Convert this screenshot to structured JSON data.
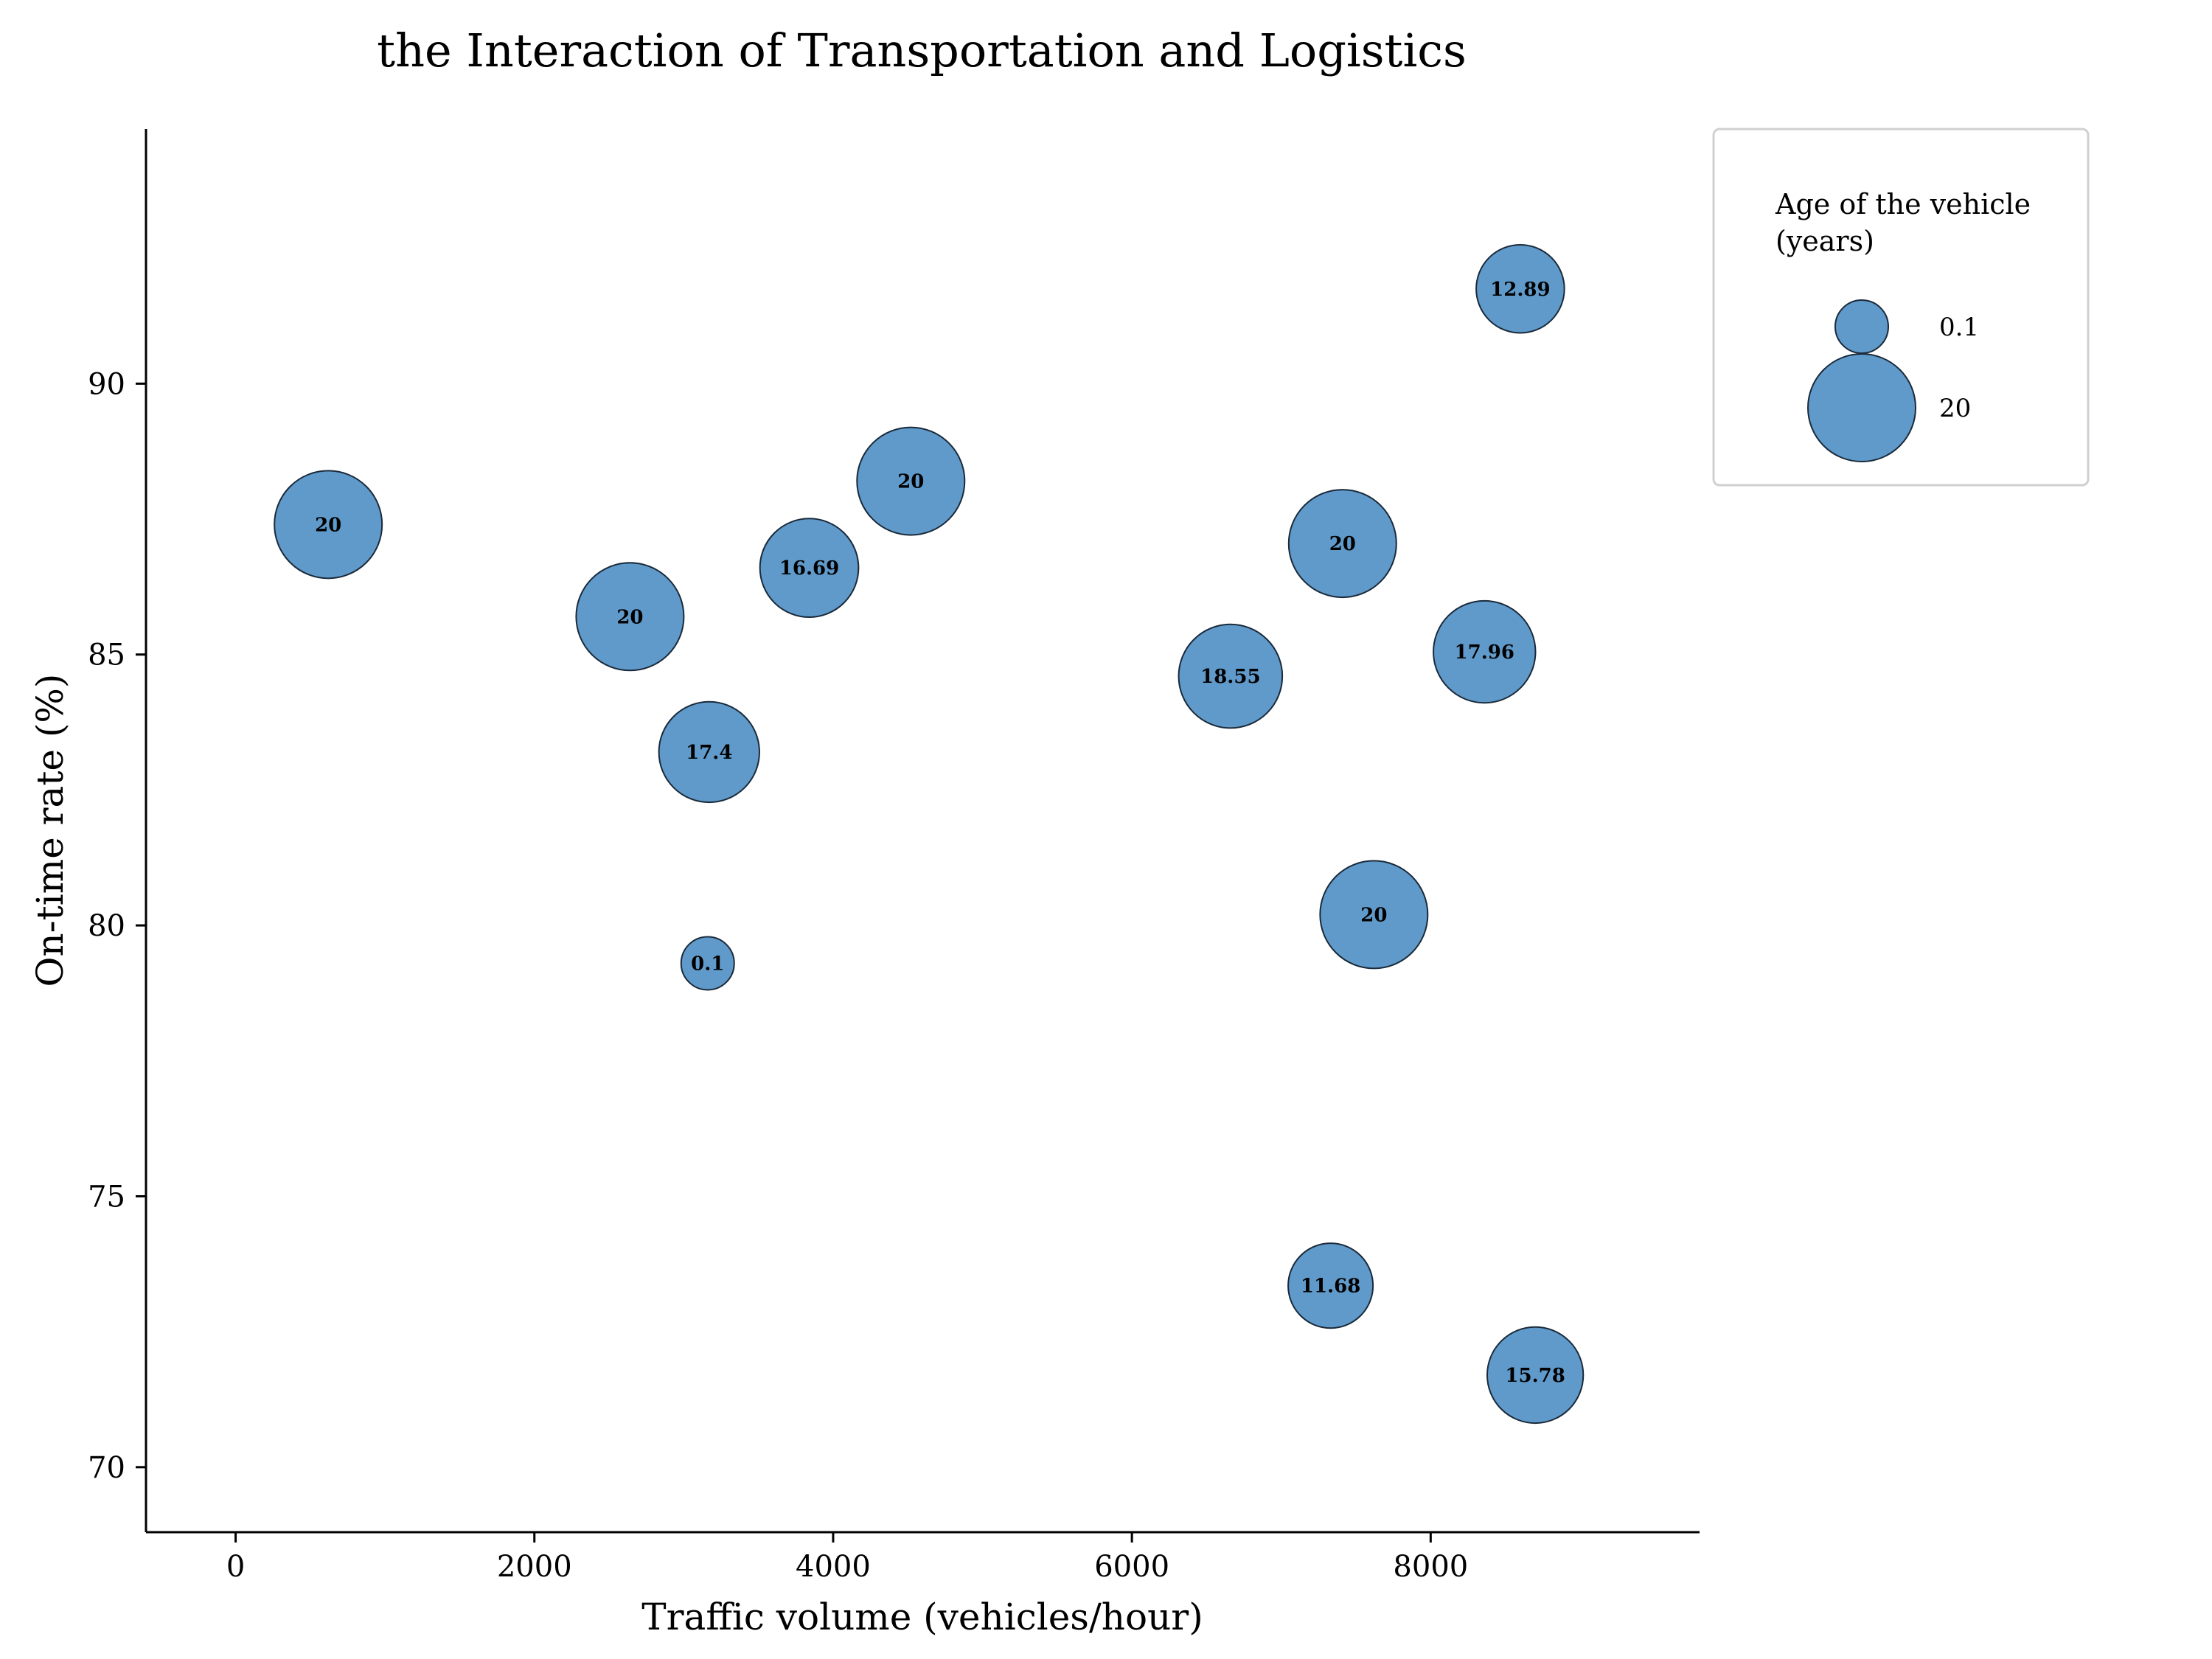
{
  "chart_data": {
    "type": "scatter",
    "title": "the Interaction of Transportation and Logistics",
    "xlabel": "Traffic volume (vehicles/hour)",
    "ylabel": "On-time rate (%)",
    "xlim": [
      -600,
      9800
    ],
    "ylim": [
      68.8,
      94.7
    ],
    "xticks": [
      0,
      2000,
      4000,
      6000,
      8000
    ],
    "yticks": [
      70,
      75,
      80,
      85,
      90
    ],
    "grid": false,
    "legend": {
      "title": "Age of the vehicle\n(years)",
      "placement": "top-right, outside plot",
      "entries": [
        {
          "label": "0.1",
          "size": 0.1
        },
        {
          "label": "20",
          "size": 20
        }
      ]
    },
    "marker_color": "#4f8fc4",
    "marker_edge_color": "#1a2a3a",
    "points": [
      {
        "x": 620,
        "y": 87.4,
        "size": 20,
        "label": "20"
      },
      {
        "x": 2640,
        "y": 85.7,
        "size": 20,
        "label": "20"
      },
      {
        "x": 3170,
        "y": 83.2,
        "size": 17.4,
        "label": "17.4"
      },
      {
        "x": 3160,
        "y": 79.3,
        "size": 0.1,
        "label": "0.1"
      },
      {
        "x": 3840,
        "y": 86.6,
        "size": 16.69,
        "label": "16.69"
      },
      {
        "x": 4520,
        "y": 88.2,
        "size": 20,
        "label": "20"
      },
      {
        "x": 6660,
        "y": 84.6,
        "size": 18.55,
        "label": "18.55"
      },
      {
        "x": 7410,
        "y": 87.05,
        "size": 20,
        "label": "20"
      },
      {
        "x": 7620,
        "y": 80.2,
        "size": 20,
        "label": "20"
      },
      {
        "x": 7330,
        "y": 73.35,
        "size": 11.68,
        "label": "11.68"
      },
      {
        "x": 8360,
        "y": 85.05,
        "size": 17.96,
        "label": "17.96"
      },
      {
        "x": 8600,
        "y": 91.75,
        "size": 12.89,
        "label": "12.89"
      },
      {
        "x": 8700,
        "y": 71.7,
        "size": 15.78,
        "label": "15.78"
      }
    ]
  }
}
